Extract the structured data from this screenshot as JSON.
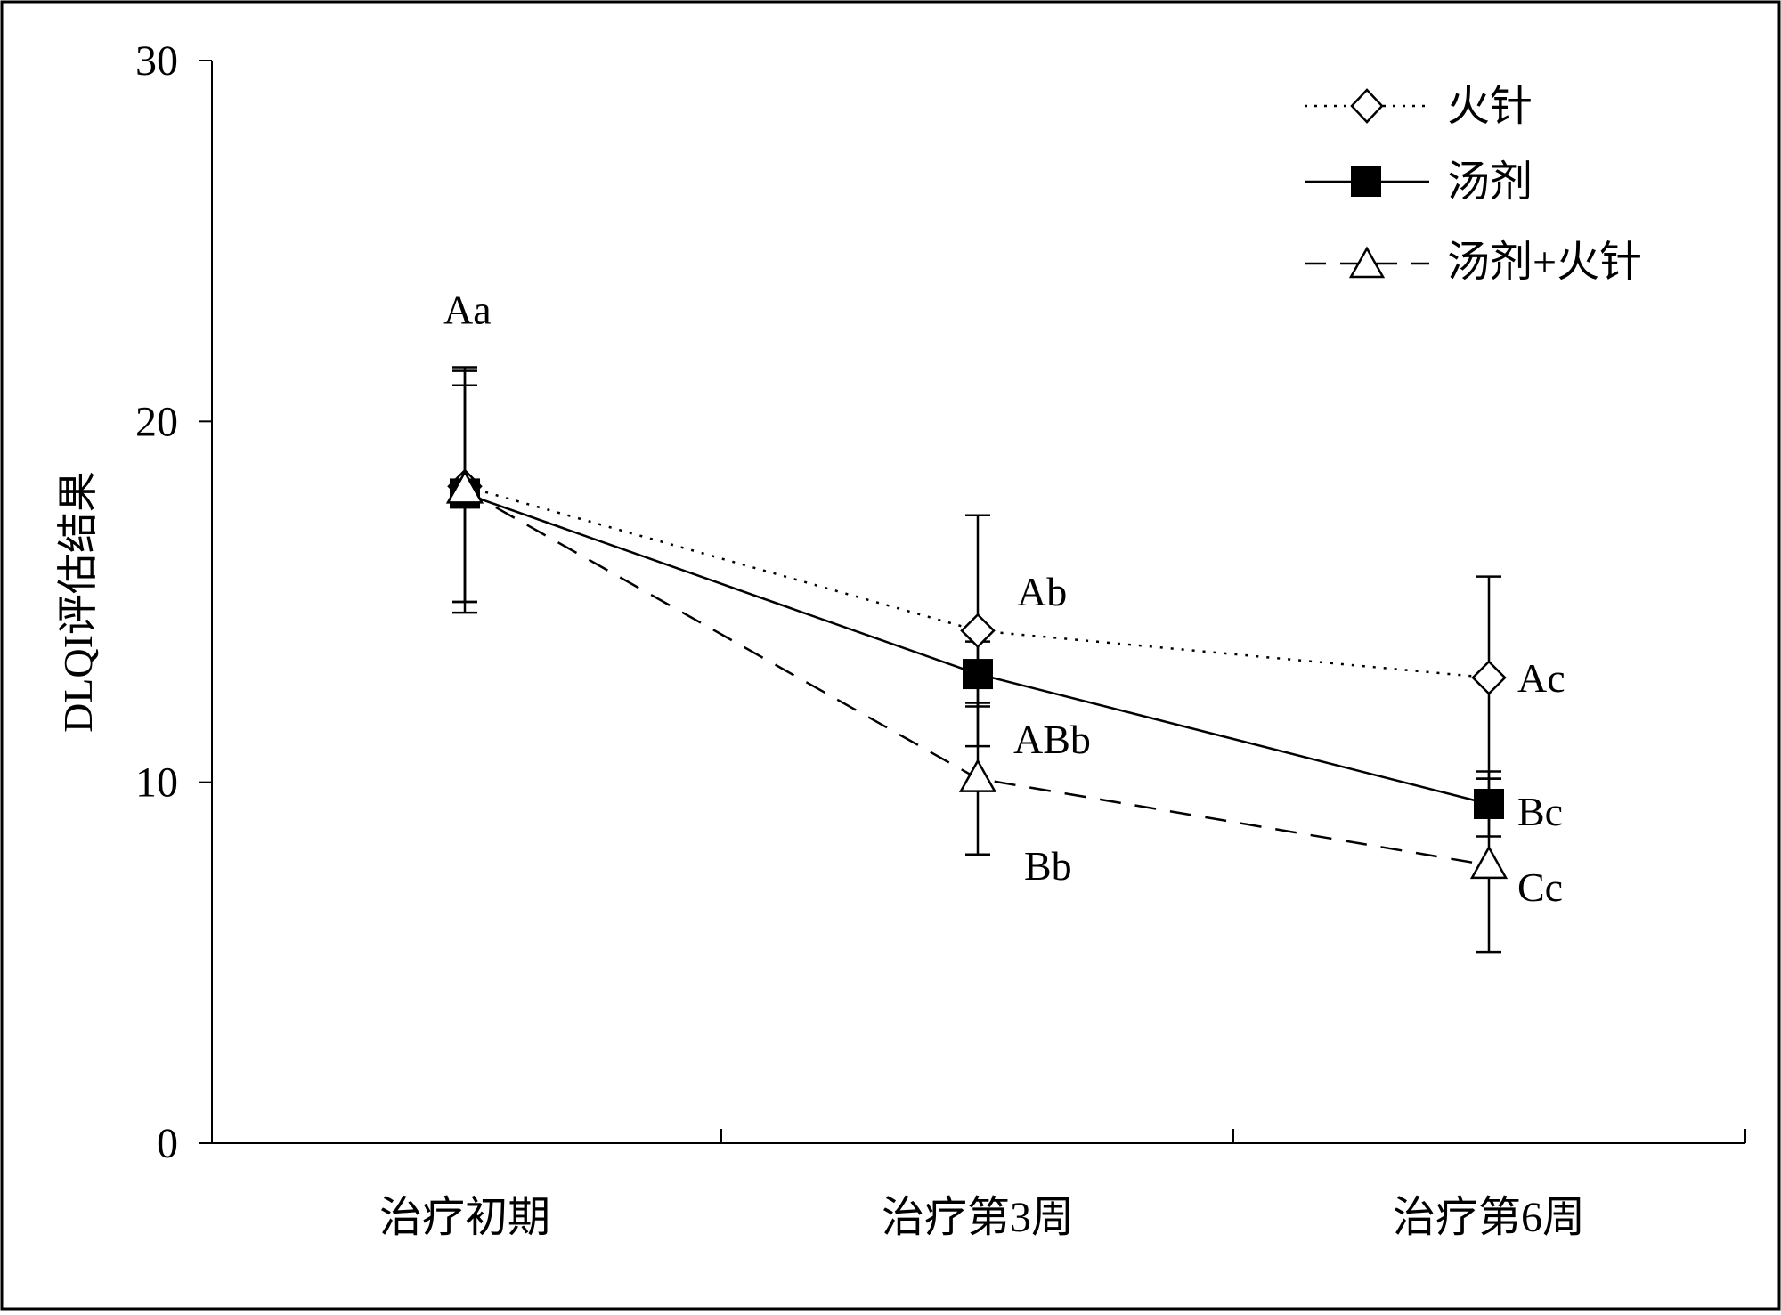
{
  "chart_data": {
    "type": "line",
    "title": "",
    "xlabel": "",
    "ylabel": "DLQI评估结果",
    "ylim": [
      0,
      30
    ],
    "yticks": [
      0,
      10,
      20,
      30
    ],
    "categories": [
      "治疗初期",
      "治疗第3周",
      "治疗第6周"
    ],
    "grid": false,
    "legend_position": "top-right",
    "series": [
      {
        "name": "火针",
        "line_style": "dotted",
        "marker": "diamond-open",
        "values": [
          18.2,
          14.2,
          12.9
        ],
        "error": [
          3.2,
          3.2,
          2.8
        ]
      },
      {
        "name": "汤剂",
        "line_style": "solid",
        "marker": "square-filled",
        "values": [
          18.0,
          13.0,
          9.4
        ],
        "error": [
          3.0,
          0.9,
          0.9
        ]
      },
      {
        "name": "汤剂+火针",
        "line_style": "dashed",
        "marker": "triangle-open",
        "values": [
          18.1,
          10.1,
          7.7
        ],
        "error": [
          3.4,
          2.1,
          2.4
        ]
      }
    ],
    "annotations": [
      {
        "text": "Aa",
        "category": 0,
        "y": 23.1
      },
      {
        "text": "Ab",
        "category": 1,
        "y": 15.3
      },
      {
        "text": "ABb",
        "category": 1,
        "y": 11.2
      },
      {
        "text": "Bb",
        "category": 1,
        "y": 7.7
      },
      {
        "text": "Ac",
        "category": 2,
        "y": 12.9
      },
      {
        "text": "Bc",
        "category": 2,
        "y": 9.2
      },
      {
        "text": "Cc",
        "category": 2,
        "y": 7.1
      }
    ]
  }
}
